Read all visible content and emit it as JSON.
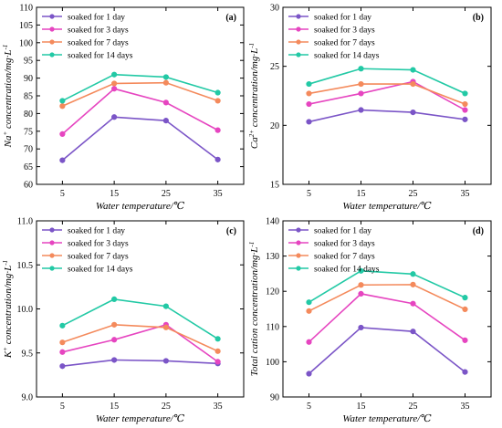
{
  "legend": [
    "soaked for 1 day",
    "soaked for 3 days",
    "soaked for 7 days",
    "soaked for 14 days"
  ],
  "colors": [
    "#7b55c7",
    "#e645c0",
    "#f48a5c",
    "#22c9a5"
  ],
  "chart_data": [
    {
      "type": "line",
      "panel": "(a)",
      "x": [
        5,
        15,
        25,
        35
      ],
      "xlabel": "Water temperature/℃",
      "ylabel_html": "Na<tspan baseline-shift='super' font-size='7'>+</tspan> concentration/mg·L<tspan baseline-shift='super' font-size='7'>-1</tspan>",
      "ylim": [
        60,
        110
      ],
      "yticks": [
        60,
        65,
        70,
        75,
        80,
        85,
        90,
        95,
        100,
        105,
        110
      ],
      "ytick_labels": [
        "60",
        "65",
        "70",
        "75",
        "80",
        "85",
        "90",
        "95",
        "100",
        "105",
        "110"
      ],
      "series": [
        {
          "name": "soaked for 1 day",
          "values": [
            66.8,
            79.0,
            78.0,
            67.0
          ]
        },
        {
          "name": "soaked for 3 days",
          "values": [
            74.2,
            87.0,
            83.1,
            75.3
          ]
        },
        {
          "name": "soaked for 7 days",
          "values": [
            82.1,
            88.5,
            88.7,
            83.6
          ]
        },
        {
          "name": "soaked for 14 days",
          "values": [
            83.6,
            91.0,
            90.3,
            85.9
          ]
        }
      ],
      "legend_position": "top-left"
    },
    {
      "type": "line",
      "panel": "(b)",
      "x": [
        5,
        15,
        25,
        35
      ],
      "xlabel": "Water temperature/℃",
      "ylabel_html": "Ca<tspan baseline-shift='super' font-size='7'>2+</tspan> concentration/mg·L<tspan baseline-shift='super' font-size='7'>-1</tspan>",
      "ylim": [
        15,
        30
      ],
      "yticks": [
        15,
        20,
        25,
        30
      ],
      "ytick_labels": [
        "15",
        "20",
        "25",
        "30"
      ],
      "series": [
        {
          "name": "soaked for 1 day",
          "values": [
            20.3,
            21.3,
            21.1,
            20.5
          ]
        },
        {
          "name": "soaked for 3 days",
          "values": [
            21.8,
            22.7,
            23.7,
            21.3
          ]
        },
        {
          "name": "soaked for 7 days",
          "values": [
            22.7,
            23.5,
            23.5,
            21.8
          ]
        },
        {
          "name": "soaked for 14 days",
          "values": [
            23.5,
            24.8,
            24.7,
            22.7
          ]
        }
      ],
      "legend_position": "top-left"
    },
    {
      "type": "line",
      "panel": "(c)",
      "x": [
        5,
        15,
        25,
        35
      ],
      "xlabel": "Water temperature/℃",
      "ylabel_html": "K<tspan baseline-shift='super' font-size='7'>+</tspan> concentration/mg·L<tspan baseline-shift='super' font-size='7'>-1</tspan>",
      "ylim": [
        9.0,
        11.0
      ],
      "yticks": [
        9.0,
        9.5,
        10.0,
        10.5,
        11.0
      ],
      "ytick_labels": [
        "9.0",
        "9.5",
        "10.0",
        "10.5",
        "11.0"
      ],
      "series": [
        {
          "name": "soaked for 1 day",
          "values": [
            9.35,
            9.42,
            9.41,
            9.38
          ]
        },
        {
          "name": "soaked for 3 days",
          "values": [
            9.51,
            9.65,
            9.82,
            9.4
          ]
        },
        {
          "name": "soaked for 7 days",
          "values": [
            9.62,
            9.82,
            9.79,
            9.52
          ]
        },
        {
          "name": "soaked for 14 days",
          "values": [
            9.81,
            10.11,
            10.03,
            9.66
          ]
        }
      ],
      "legend_position": "top-left"
    },
    {
      "type": "line",
      "panel": "(d)",
      "x": [
        5,
        15,
        25,
        35
      ],
      "xlabel": "Water temperature/℃",
      "ylabel_html": "Total cation concentration/mg·L<tspan baseline-shift='super' font-size='7'>-1</tspan>",
      "ylim": [
        90,
        140
      ],
      "yticks": [
        90,
        100,
        110,
        120,
        130,
        140
      ],
      "ytick_labels": [
        "90",
        "100",
        "110",
        "120",
        "130",
        "140"
      ],
      "series": [
        {
          "name": "soaked for 1 day",
          "values": [
            96.6,
            109.7,
            108.6,
            97.1
          ]
        },
        {
          "name": "soaked for 3 days",
          "values": [
            105.6,
            119.3,
            116.5,
            106.1
          ]
        },
        {
          "name": "soaked for 7 days",
          "values": [
            114.4,
            121.8,
            121.9,
            114.9
          ]
        },
        {
          "name": "soaked for 14 days",
          "values": [
            116.9,
            125.8,
            124.9,
            118.2
          ]
        }
      ],
      "legend_position": "top-left"
    }
  ]
}
